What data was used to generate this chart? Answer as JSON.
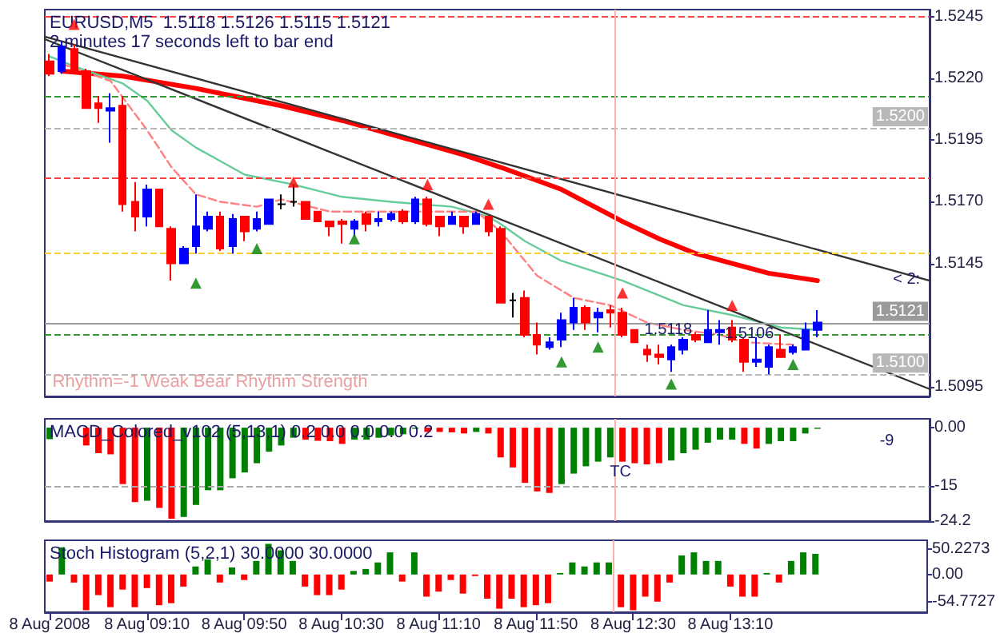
{
  "chart_data": [
    {
      "type": "candlestick",
      "title": "EURUSD,M5  1.5118 1.5126 1.5115 1.5121",
      "subtitle": "2 minutes 17 seconds left to bar end",
      "x": [
        "2008-08-08T08:30",
        "2008-08-08T08:35",
        "2008-08-08T08:40",
        "2008-08-08T08:45",
        "2008-08-08T08:50",
        "2008-08-08T08:55",
        "2008-08-08T09:00",
        "2008-08-08T09:05",
        "2008-08-08T09:10",
        "2008-08-08T09:15",
        "2008-08-08T09:20",
        "2008-08-08T09:25",
        "2008-08-08T09:30",
        "2008-08-08T09:35",
        "2008-08-08T09:40",
        "2008-08-08T09:45",
        "2008-08-08T09:50",
        "2008-08-08T09:55",
        "2008-08-08T10:00",
        "2008-08-08T10:05",
        "2008-08-08T10:10",
        "2008-08-08T10:15",
        "2008-08-08T10:20",
        "2008-08-08T10:25",
        "2008-08-08T10:30",
        "2008-08-08T10:35",
        "2008-08-08T10:40",
        "2008-08-08T10:45",
        "2008-08-08T10:50",
        "2008-08-08T10:55",
        "2008-08-08T11:00",
        "2008-08-08T11:05",
        "2008-08-08T11:10",
        "2008-08-08T11:15",
        "2008-08-08T11:20",
        "2008-08-08T11:25",
        "2008-08-08T11:30",
        "2008-08-08T11:35",
        "2008-08-08T11:40",
        "2008-08-08T11:45",
        "2008-08-08T11:50",
        "2008-08-08T11:55",
        "2008-08-08T12:00",
        "2008-08-08T12:05",
        "2008-08-08T12:10",
        "2008-08-08T12:15",
        "2008-08-08T12:20",
        "2008-08-08T12:25",
        "2008-08-08T12:30",
        "2008-08-08T12:35",
        "2008-08-08T12:40",
        "2008-08-08T12:45",
        "2008-08-08T12:50",
        "2008-08-08T12:55",
        "2008-08-08T13:00",
        "2008-08-08T13:05",
        "2008-08-08T13:10",
        "2008-08-08T13:15",
        "2008-08-08T13:20",
        "2008-08-08T13:25",
        "2008-08-08T13:30",
        "2008-08-08T13:35",
        "2008-08-08T13:40",
        "2008-08-08T13:45"
      ],
      "ohlc": [
        [
          1.5227,
          1.523,
          1.5221,
          1.5222
        ],
        [
          1.5223,
          1.5235,
          1.5222,
          1.5233
        ],
        [
          1.5232,
          1.5234,
          1.5222,
          1.5223
        ],
        [
          1.5223,
          1.5224,
          1.5208,
          1.5208
        ],
        [
          1.521,
          1.5213,
          1.5202,
          1.5208
        ],
        [
          1.5207,
          1.5214,
          1.5194,
          1.5208
        ],
        [
          1.5209,
          1.5213,
          1.5166,
          1.5169
        ],
        [
          1.517,
          1.5178,
          1.5158,
          1.5164
        ],
        [
          1.5164,
          1.5177,
          1.516,
          1.5175
        ],
        [
          1.5175,
          1.5175,
          1.516,
          1.516
        ],
        [
          1.5159,
          1.516,
          1.5138,
          1.5145
        ],
        [
          1.5145,
          1.5152,
          1.5145,
          1.5151
        ],
        [
          1.5152,
          1.5173,
          1.5149,
          1.516
        ],
        [
          1.5159,
          1.5166,
          1.5158,
          1.5164
        ],
        [
          1.5164,
          1.5166,
          1.515,
          1.5151
        ],
        [
          1.5152,
          1.5165,
          1.5149,
          1.5163
        ],
        [
          1.5164,
          1.5164,
          1.5154,
          1.5158
        ],
        [
          1.5159,
          1.5166,
          1.5158,
          1.5163
        ],
        [
          1.5161,
          1.5171,
          1.5161,
          1.5171
        ],
        [
          1.5169,
          1.5173,
          1.5167,
          1.5169
        ],
        [
          1.517,
          1.5177,
          1.5168,
          1.517
        ],
        [
          1.517,
          1.517,
          1.5163,
          1.5163
        ],
        [
          1.5166,
          1.5166,
          1.5162,
          1.5162
        ],
        [
          1.5162,
          1.5162,
          1.5156,
          1.516
        ],
        [
          1.5162,
          1.5163,
          1.5153,
          1.5161
        ],
        [
          1.5159,
          1.5163,
          1.5156,
          1.5162
        ],
        [
          1.5165,
          1.5166,
          1.5158,
          1.5161
        ],
        [
          1.5162,
          1.5166,
          1.516,
          1.5163
        ],
        [
          1.5163,
          1.5166,
          1.5162,
          1.5165
        ],
        [
          1.5166,
          1.5167,
          1.5161,
          1.5162
        ],
        [
          1.5162,
          1.5172,
          1.5161,
          1.5171
        ],
        [
          1.5171,
          1.5172,
          1.516,
          1.5161
        ],
        [
          1.5164,
          1.5164,
          1.5156,
          1.516
        ],
        [
          1.5161,
          1.5166,
          1.5161,
          1.5164
        ],
        [
          1.5164,
          1.5164,
          1.5157,
          1.516
        ],
        [
          1.5161,
          1.5166,
          1.5161,
          1.5165
        ],
        [
          1.5164,
          1.5164,
          1.5156,
          1.5158
        ],
        [
          1.5159,
          1.516,
          1.5129,
          1.5129
        ],
        [
          1.513,
          1.5133,
          1.5123,
          1.513
        ],
        [
          1.5131,
          1.5134,
          1.5115,
          1.5116
        ],
        [
          1.5116,
          1.5121,
          1.5108,
          1.5112
        ],
        [
          1.5111,
          1.5115,
          1.511,
          1.5113
        ],
        [
          1.5114,
          1.5125,
          1.5111,
          1.5122
        ],
        [
          1.5121,
          1.5131,
          1.5118,
          1.5127
        ],
        [
          1.5127,
          1.5128,
          1.5118,
          1.5121
        ],
        [
          1.5123,
          1.5127,
          1.5117,
          1.5125
        ],
        [
          1.5126,
          1.5128,
          1.5119,
          1.5125
        ],
        [
          1.5125,
          1.5127,
          1.5115,
          1.5116
        ],
        [
          1.5118,
          1.5118,
          1.5113,
          1.5113
        ],
        [
          1.511,
          1.5112,
          1.5105,
          1.5108
        ],
        [
          1.5108,
          1.5112,
          1.5104,
          1.5107
        ],
        [
          1.5106,
          1.5112,
          1.5101,
          1.5111
        ],
        [
          1.511,
          1.5115,
          1.5108,
          1.5114
        ],
        [
          1.5116,
          1.5117,
          1.5113,
          1.5114
        ],
        [
          1.5113,
          1.5126,
          1.5113,
          1.5118
        ],
        [
          1.5117,
          1.5122,
          1.5112,
          1.5118
        ],
        [
          1.5119,
          1.5122,
          1.5113,
          1.5114
        ],
        [
          1.5114,
          1.5115,
          1.5101,
          1.5105
        ],
        [
          1.5105,
          1.5115,
          1.5103,
          1.5106
        ],
        [
          1.5103,
          1.5112,
          1.51,
          1.5111
        ],
        [
          1.511,
          1.5116,
          1.5107,
          1.5107
        ],
        [
          1.5109,
          1.5112,
          1.5108,
          1.5111
        ],
        [
          1.511,
          1.5121,
          1.511,
          1.5118
        ],
        [
          1.5118,
          1.5126,
          1.5115,
          1.5121
        ]
      ],
      "colors": [
        "#ff0000",
        "#0000ff",
        "#ff0000",
        "#ff0000",
        "#ff0000",
        "#0000ff",
        "#ff0000",
        "#ff0000",
        "#0000ff",
        "#ff0000",
        "#ff0000",
        "#0000ff",
        "#0000ff",
        "#0000ff",
        "#ff0000",
        "#0000ff",
        "#ff0000",
        "#0000ff",
        "#0000ff",
        "#000000",
        "#000000",
        "#ff0000",
        "#ff0000",
        "#ff0000",
        "#ff0000",
        "#0000ff",
        "#ff0000",
        "#0000ff",
        "#0000ff",
        "#ff0000",
        "#0000ff",
        "#ff0000",
        "#ff0000",
        "#0000ff",
        "#ff0000",
        "#0000ff",
        "#ff0000",
        "#ff0000",
        "#000000",
        "#ff0000",
        "#ff0000",
        "#0000ff",
        "#0000ff",
        "#0000ff",
        "#ff0000",
        "#0000ff",
        "#ff0000",
        "#ff0000",
        "#ff0000",
        "#ff0000",
        "#ff0000",
        "#0000ff",
        "#0000ff",
        "#ff0000",
        "#0000ff",
        "#0000ff",
        "#ff0000",
        "#ff0000",
        "#0000ff",
        "#0000ff",
        "#ff0000",
        "#0000ff",
        "#0000ff",
        "#0000ff"
      ],
      "series": [
        {
          "type": "line",
          "color": "#ff0000",
          "x": [
            "2008-08-08T08:35",
            "2008-08-08T09:00",
            "2008-08-08T09:30",
            "2008-08-08T09:50",
            "2008-08-08T10:05",
            "2008-08-08T10:30",
            "2008-08-08T10:55",
            "2008-08-08T11:20",
            "2008-08-08T11:35",
            "2008-08-08T12:00",
            "2008-08-08T12:25",
            "2008-08-08T12:40",
            "2008-08-08T12:55",
            "2008-08-08T13:10",
            "2008-08-08T13:25",
            "2008-08-08T13:45"
          ],
          "values": [
            1.5223,
            1.5221,
            1.5216,
            1.5212,
            1.5209,
            1.5203,
            1.5196,
            1.5189,
            1.5184,
            1.5175,
            1.5162,
            1.5155,
            1.5149,
            1.5145,
            1.5141,
            1.5138
          ]
        },
        {
          "type": "line",
          "color": "#66cc99",
          "x": [
            "2008-08-08T08:30",
            "2008-08-08T08:40",
            "2008-08-08T09:00",
            "2008-08-08T09:10",
            "2008-08-08T09:20",
            "2008-08-08T09:30",
            "2008-08-08T09:50",
            "2008-08-08T10:10",
            "2008-08-08T10:30",
            "2008-08-08T10:50",
            "2008-08-08T11:15",
            "2008-08-08T11:30",
            "2008-08-08T11:35",
            "2008-08-08T11:45",
            "2008-08-08T12:00",
            "2008-08-08T12:25",
            "2008-08-08T12:50",
            "2008-08-08T13:10",
            "2008-08-08T13:30",
            "2008-08-08T13:45"
          ],
          "values": [
            1.5229,
            1.5225,
            1.5218,
            1.5211,
            1.5199,
            1.5192,
            1.5181,
            1.5177,
            1.5172,
            1.517,
            1.5168,
            1.5164,
            1.5161,
            1.5154,
            1.5146,
            1.5138,
            1.5128,
            1.5124,
            1.5119,
            1.5118
          ]
        },
        {
          "type": "line",
          "color": "#ff8080",
          "line_style": "dashed",
          "x": [
            "2008-08-08T08:35",
            "2008-08-08T08:55",
            "2008-08-08T09:10",
            "2008-08-08T09:20",
            "2008-08-08T09:30",
            "2008-08-08T09:40",
            "2008-08-08T09:55",
            "2008-08-08T10:05",
            "2008-08-08T10:25",
            "2008-08-08T10:45",
            "2008-08-08T11:05",
            "2008-08-08T11:25",
            "2008-08-08T11:35",
            "2008-08-08T11:50",
            "2008-08-08T12:05",
            "2008-08-08T12:20",
            "2008-08-08T12:35",
            "2008-08-08T12:50",
            "2008-08-08T13:05",
            "2008-08-08T13:15",
            "2008-08-08T13:35"
          ],
          "values": [
            1.5226,
            1.5219,
            1.5199,
            1.5184,
            1.5173,
            1.517,
            1.5168,
            1.5171,
            1.5166,
            1.5166,
            1.5166,
            1.5166,
            1.5158,
            1.514,
            1.5131,
            1.5128,
            1.5121,
            1.5118,
            1.5116,
            1.5113,
            1.5112
          ]
        },
        {
          "type": "line",
          "color": "#333333",
          "x": [
            "2008-08-08T08:28",
            "2008-08-08T14:31"
          ],
          "values": [
            1.5237,
            1.5138
          ]
        },
        {
          "type": "line",
          "color": "#333333",
          "x": [
            "2008-08-08T08:28",
            "2008-08-08T14:31"
          ],
          "values": [
            1.5236,
            1.5094
          ]
        },
        {
          "type": "scatter",
          "color": "#008000",
          "marker": "triangle",
          "x": [
            "2008-08-08T09:30",
            "2008-08-08T09:55",
            "2008-08-08T10:35",
            "2008-08-08T12:00",
            "2008-08-08T12:15",
            "2008-08-08T12:45",
            "2008-08-08T13:35"
          ],
          "values": [
            1.5137,
            1.5151,
            1.5155,
            1.5105,
            1.5111,
            1.5096,
            1.5104
          ]
        },
        {
          "type": "scatter",
          "color": "#ff0000",
          "marker": "triangle",
          "x": [
            "2008-08-08T08:40",
            "2008-08-08T10:10",
            "2008-08-08T11:05",
            "2008-08-08T11:30",
            "2008-08-08T12:25",
            "2008-08-08T13:10"
          ],
          "values": [
            1.5242,
            1.5178,
            1.5177,
            1.5169,
            1.5133,
            1.5128
          ]
        }
      ],
      "xlim": [
        "2008-08-08T08:28",
        "2008-08-08T14:31"
      ],
      "ylim": [
        1.5091,
        1.5248
      ],
      "yticks": [
        1.5245,
        {
          "value": 1.522,
          "label": "1.5220"
        },
        1.5195,
        {
          "value": 1.517,
          "label": "1.5170"
        },
        1.5145,
        1.5095
      ],
      "ref_lines": [
        {
          "axis": "y",
          "value": 1.5245,
          "color": "#ff4040",
          "line_style": "dashed"
        },
        {
          "axis": "y",
          "value": 1.5213,
          "color": "#339933",
          "line_style": "dashed"
        },
        {
          "axis": "y",
          "value": 1.52,
          "label": "1.5200",
          "color": "#b8b8b8",
          "line_style": "dashed"
        },
        {
          "axis": "y",
          "value": 1.518,
          "color": "#ff4040",
          "line_style": "dashed"
        },
        {
          "axis": "y",
          "value": 1.5149,
          "color": "#ffcc33",
          "line_style": "dashed"
        },
        {
          "axis": "y",
          "value": 1.5121,
          "label": "1.5121",
          "color": "#9a9a9a",
          "line_style": "solid"
        },
        {
          "axis": "y",
          "value": 1.5116,
          "color": "#339933",
          "line_style": "dashed"
        },
        {
          "axis": "y",
          "value": 1.51,
          "label": "1.5100",
          "color": "#b8b8b8",
          "line_style": "dashed"
        },
        {
          "axis": "x",
          "value": "2008-08-08T12:22",
          "color": "#ffb0b0",
          "line_style": "solid"
        }
      ],
      "annotations": [
        "Rhythm=-1 Weak Bear Rhythm Strength",
        {
          "text": "1.5118",
          "x": "2008-08-08T12:34",
          "y": 1.5118
        },
        "1.5106",
        "< 2:"
      ],
      "tick_labels": "y"
    },
    {
      "type": "bar",
      "title": "MACD_Colored_v102 (5,13,1) 0.2 0.0 0.0 0.0 0.2",
      "x": [
        "2008-08-08T08:30",
        "2008-08-08T08:35",
        "2008-08-08T08:40",
        "2008-08-08T08:45",
        "2008-08-08T08:50",
        "2008-08-08T08:55",
        "2008-08-08T09:00",
        "2008-08-08T09:05",
        "2008-08-08T09:10",
        "2008-08-08T09:15",
        "2008-08-08T09:20",
        "2008-08-08T09:25",
        "2008-08-08T09:30",
        "2008-08-08T09:35",
        "2008-08-08T09:40",
        "2008-08-08T09:45",
        "2008-08-08T09:50",
        "2008-08-08T09:55",
        "2008-08-08T10:00",
        "2008-08-08T10:05",
        "2008-08-08T10:10",
        "2008-08-08T10:15",
        "2008-08-08T10:20",
        "2008-08-08T10:25",
        "2008-08-08T10:30",
        "2008-08-08T10:35",
        "2008-08-08T10:40",
        "2008-08-08T10:45",
        "2008-08-08T10:50",
        "2008-08-08T10:55",
        "2008-08-08T11:00",
        "2008-08-08T11:05",
        "2008-08-08T11:10",
        "2008-08-08T11:15",
        "2008-08-08T11:20",
        "2008-08-08T11:25",
        "2008-08-08T11:30",
        "2008-08-08T11:35",
        "2008-08-08T11:40",
        "2008-08-08T11:45",
        "2008-08-08T11:50",
        "2008-08-08T11:55",
        "2008-08-08T12:00",
        "2008-08-08T12:05",
        "2008-08-08T12:10",
        "2008-08-08T12:15",
        "2008-08-08T12:20",
        "2008-08-08T12:25",
        "2008-08-08T12:30",
        "2008-08-08T12:35",
        "2008-08-08T12:40",
        "2008-08-08T12:45",
        "2008-08-08T12:50",
        "2008-08-08T12:55",
        "2008-08-08T13:00",
        "2008-08-08T13:05",
        "2008-08-08T13:10",
        "2008-08-08T13:15",
        "2008-08-08T13:20",
        "2008-08-08T13:25",
        "2008-08-08T13:30",
        "2008-08-08T13:35",
        "2008-08-08T13:40",
        "2008-08-08T13:45"
      ],
      "values": [
        -3,
        null,
        null,
        -4.6,
        -6.6,
        -6.9,
        -14.6,
        -19.3,
        -18.9,
        -20.8,
        -23.6,
        -23.1,
        -20,
        -16.2,
        -16.2,
        -13.1,
        -11.6,
        -9.2,
        -6.2,
        -4.6,
        -2.6,
        -3.1,
        -3.4,
        -3.5,
        -4.2,
        -3.1,
        -3.1,
        -2.6,
        -2,
        -1.7,
        -0.3,
        -1.1,
        -1.1,
        -1.2,
        -1.5,
        -1.1,
        -1.5,
        -7.7,
        -10.3,
        -14.3,
        -16.5,
        -16.9,
        -14.6,
        -11.9,
        -10,
        -8.8,
        -7.7,
        -8.8,
        -9.2,
        -9.5,
        -9.2,
        -8.5,
        -6.6,
        -5.7,
        -3.9,
        -3.1,
        -3.1,
        -4.2,
        -5.4,
        -4.2,
        -3.5,
        -3.5,
        -1.5,
        -0.3
      ],
      "colors": [
        "#008000",
        "#008000",
        "#ff0000",
        "#ff0000",
        "#ff0000",
        "#ff0000",
        "#ff0000",
        "#ff0000",
        "#008000",
        "#ff0000",
        "#ff0000",
        "#008000",
        "#008000",
        "#008000",
        "#008000",
        "#008000",
        "#008000",
        "#008000",
        "#008000",
        "#008000",
        "#008000",
        "#ff0000",
        "#ff0000",
        "#ff0000",
        "#ff0000",
        "#008000",
        "#008000",
        "#008000",
        "#008000",
        "#008000",
        "#008000",
        "#ff0000",
        "#ff0000",
        "#ff0000",
        "#ff0000",
        "#008000",
        "#ff0000",
        "#ff0000",
        "#ff0000",
        "#ff0000",
        "#ff0000",
        "#ff0000",
        "#008000",
        "#008000",
        "#008000",
        "#008000",
        "#008000",
        "#ff0000",
        "#ff0000",
        "#ff0000",
        "#ff0000",
        "#008000",
        "#008000",
        "#008000",
        "#008000",
        "#008000",
        "#008000",
        "#ff0000",
        "#ff0000",
        "#008000",
        "#008000",
        "#008000",
        "#008000",
        "#008000"
      ],
      "xlim": [
        "2008-08-08T08:28",
        "2008-08-08T14:31"
      ],
      "ylim": [
        -24.2,
        2.3
      ],
      "yticks": [
        {
          "value": 0,
          "label": "0.00"
        },
        -15,
        -24.2
      ],
      "ref_lines": [
        {
          "axis": "y",
          "value": -15,
          "color": "#aaaaaa",
          "line_style": "dashed"
        },
        {
          "axis": "x",
          "value": "2008-08-08T12:22",
          "color": "#ffb0b0",
          "line_style": "solid"
        }
      ],
      "annotations": [
        "TC",
        "-9"
      ],
      "tick_labels": "y"
    },
    {
      "type": "bar",
      "title": "Stoch Histogram (5,2,1) 30.0000 30.0000",
      "x": [
        "2008-08-08T08:30",
        "2008-08-08T08:35",
        "2008-08-08T08:40",
        "2008-08-08T08:45",
        "2008-08-08T08:50",
        "2008-08-08T08:55",
        "2008-08-08T09:00",
        "2008-08-08T09:05",
        "2008-08-08T09:10",
        "2008-08-08T09:15",
        "2008-08-08T09:20",
        "2008-08-08T09:25",
        "2008-08-08T09:30",
        "2008-08-08T09:35",
        "2008-08-08T09:40",
        "2008-08-08T09:45",
        "2008-08-08T09:50",
        "2008-08-08T09:55",
        "2008-08-08T10:00",
        "2008-08-08T10:05",
        "2008-08-08T10:10",
        "2008-08-08T10:15",
        "2008-08-08T10:20",
        "2008-08-08T10:25",
        "2008-08-08T10:30",
        "2008-08-08T10:35",
        "2008-08-08T10:40",
        "2008-08-08T10:45",
        "2008-08-08T10:50",
        "2008-08-08T10:55",
        "2008-08-08T11:00",
        "2008-08-08T11:05",
        "2008-08-08T11:10",
        "2008-08-08T11:15",
        "2008-08-08T11:20",
        "2008-08-08T11:25",
        "2008-08-08T11:30",
        "2008-08-08T11:35",
        "2008-08-08T11:40",
        "2008-08-08T11:45",
        "2008-08-08T11:50",
        "2008-08-08T11:55",
        "2008-08-08T12:00",
        "2008-08-08T12:05",
        "2008-08-08T12:10",
        "2008-08-08T12:15",
        "2008-08-08T12:20",
        "2008-08-08T12:25",
        "2008-08-08T12:30",
        "2008-08-08T12:35",
        "2008-08-08T12:40",
        "2008-08-08T12:45",
        "2008-08-08T12:50",
        "2008-08-08T12:55",
        "2008-08-08T13:00",
        "2008-08-08T13:05",
        "2008-08-08T13:10",
        "2008-08-08T13:15",
        "2008-08-08T13:20",
        "2008-08-08T13:25",
        "2008-08-08T13:30",
        "2008-08-08T13:35",
        "2008-08-08T13:40",
        "2008-08-08T13:45"
      ],
      "values": [
        -14,
        54,
        -16,
        -71,
        -41,
        -65,
        -30,
        -65,
        -27,
        -61,
        -57,
        -24,
        16,
        30,
        -16,
        14,
        -11,
        27,
        61,
        48,
        27,
        -24,
        -41,
        -41,
        -30,
        7,
        11,
        24,
        44,
        -14,
        44,
        -44,
        -34,
        -11,
        -38,
        -3,
        -48,
        -68,
        -48,
        -65,
        -61,
        -57,
        3,
        24,
        16,
        24,
        24,
        -65,
        -71,
        -44,
        -54,
        -16,
        38,
        44,
        27,
        27,
        -24,
        -44,
        -44,
        3,
        -16,
        27,
        44,
        41
      ],
      "colors": [
        "#ff0000",
        "#008000",
        "#ff0000",
        "#ff0000",
        "#ff0000",
        "#ff0000",
        "#ff0000",
        "#ff0000",
        "#ff0000",
        "#ff0000",
        "#ff0000",
        "#ff0000",
        "#008000",
        "#008000",
        "#ff0000",
        "#008000",
        "#ff0000",
        "#008000",
        "#008000",
        "#008000",
        "#008000",
        "#ff0000",
        "#ff0000",
        "#ff0000",
        "#ff0000",
        "#008000",
        "#008000",
        "#008000",
        "#008000",
        "#ff0000",
        "#008000",
        "#ff0000",
        "#ff0000",
        "#ff0000",
        "#ff0000",
        "#ff0000",
        "#ff0000",
        "#ff0000",
        "#ff0000",
        "#ff0000",
        "#ff0000",
        "#ff0000",
        "#008000",
        "#008000",
        "#008000",
        "#008000",
        "#008000",
        "#ff0000",
        "#ff0000",
        "#ff0000",
        "#ff0000",
        "#ff0000",
        "#008000",
        "#008000",
        "#008000",
        "#008000",
        "#ff0000",
        "#ff0000",
        "#ff0000",
        "#008000",
        "#ff0000",
        "#008000",
        "#008000",
        "#008000"
      ],
      "xlim": [
        "2008-08-08T08:28",
        "2008-08-08T14:31"
      ],
      "ylim": [
        -75,
        68
      ],
      "xticks": [
        {
          "value": "2008-08-08T08:30",
          "label": "8 Aug 2008"
        },
        {
          "value": "2008-08-08T09:10",
          "label": "8 Aug 09:10"
        },
        {
          "value": "2008-08-08T09:50",
          "label": "8 Aug 09:50"
        },
        {
          "value": "2008-08-08T10:30",
          "label": "8 Aug 10:30"
        },
        {
          "value": "2008-08-08T11:10",
          "label": "8 Aug 11:10"
        },
        {
          "value": "2008-08-08T11:50",
          "label": "8 Aug 11:50"
        },
        {
          "value": "2008-08-08T12:30",
          "label": "8 Aug 12:30"
        },
        {
          "value": "2008-08-08T13:10",
          "label": "8 Aug 13:10"
        }
      ],
      "yticks": [
        50.2273,
        {
          "value": 0,
          "label": "0.00"
        },
        -54.7727
      ],
      "ref_lines": [
        {
          "axis": "x",
          "value": "2008-08-08T12:22",
          "color": "#ffb0b0",
          "line_style": "solid"
        }
      ]
    }
  ]
}
